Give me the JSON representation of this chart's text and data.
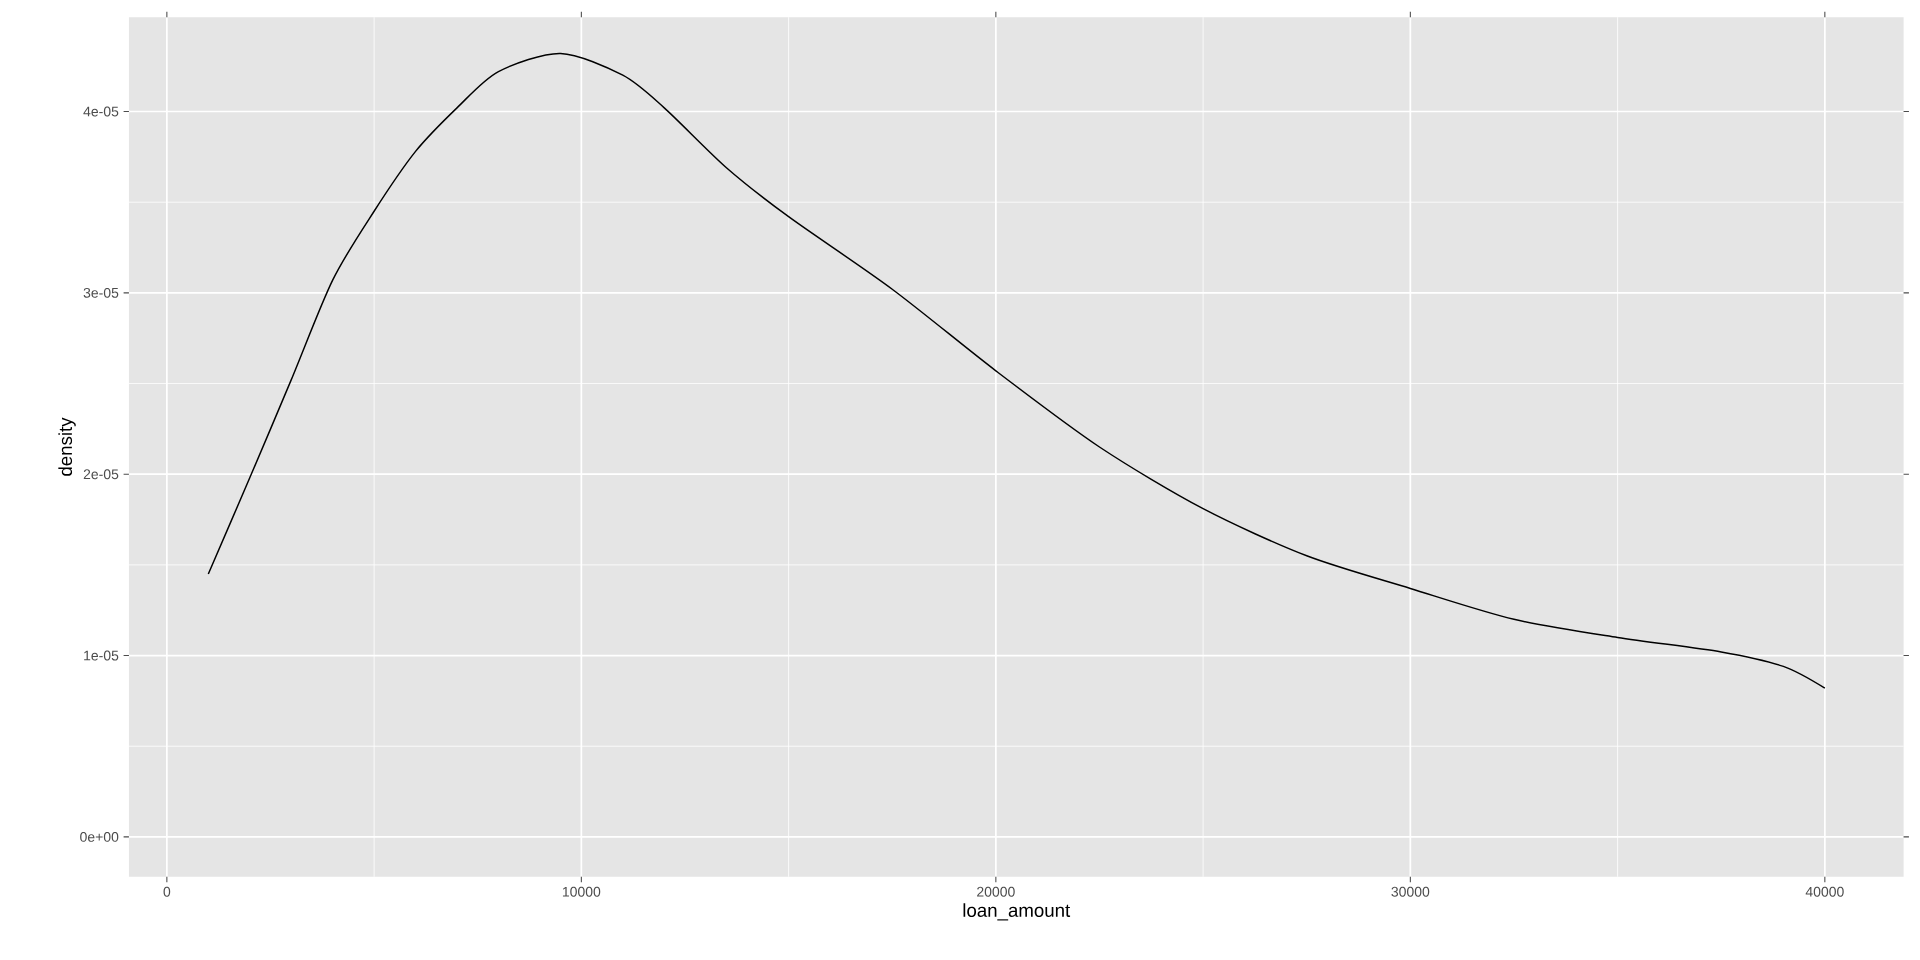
{
  "chart_data": {
    "type": "line",
    "xlabel": "loan_amount",
    "ylabel": "density",
    "x": [
      1000,
      2000,
      3000,
      4000,
      5000,
      6000,
      7000,
      8000,
      9500,
      11000,
      12000,
      13500,
      15000,
      17500,
      20000,
      22500,
      25000,
      27500,
      30000,
      32500,
      35000,
      37500,
      39000,
      40000
    ],
    "series": [
      {
        "color": "#000000",
        "values": [
          1.45e-05,
          1.98e-05,
          2.52e-05,
          3.07e-05,
          3.45e-05,
          3.78e-05,
          4.02e-05,
          4.22e-05,
          4.32e-05,
          4.2e-05,
          4.02e-05,
          3.69e-05,
          3.42e-05,
          3.02e-05,
          2.57e-05,
          2.15e-05,
          1.81e-05,
          1.55e-05,
          1.37e-05,
          1.2e-05,
          1.1e-05,
          1.02e-05,
          9.4e-06,
          8.2e-06
        ]
      }
    ],
    "xlim": [
      -915,
      41900
    ],
    "ylim": [
      -2.2e-06,
      4.52e-05
    ],
    "xticks": [
      0,
      10000,
      20000,
      30000,
      40000
    ],
    "yticks": [
      {
        "value": 0,
        "label": "0e+00"
      },
      {
        "value": 1e-05,
        "label": "1e-05"
      },
      {
        "value": 2e-05,
        "label": "2e-05"
      },
      {
        "value": 3e-05,
        "label": "3e-05"
      },
      {
        "value": 4e-05,
        "label": "4e-05"
      }
    ],
    "grid": true,
    "marker": "none",
    "line_style": "solid"
  }
}
